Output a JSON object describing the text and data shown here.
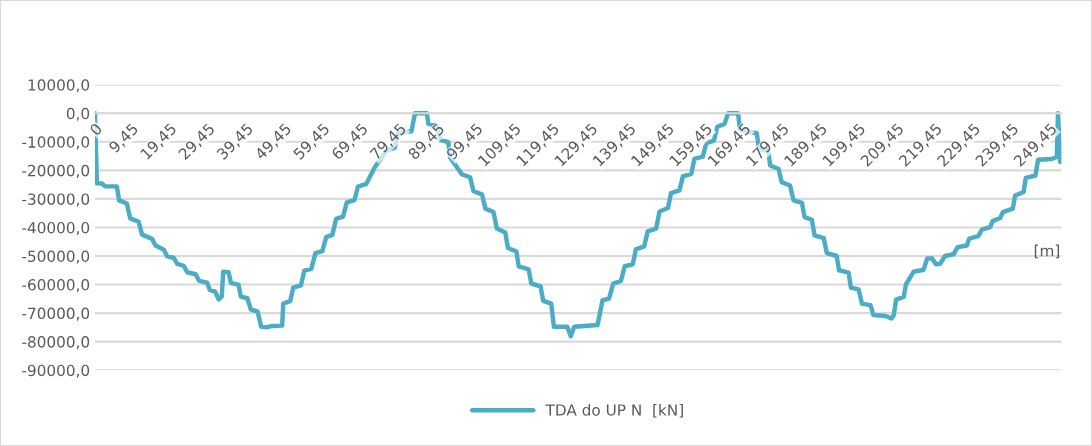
{
  "chart_data": {
    "type": "line",
    "xlabel": "[m]",
    "legend": "bottom",
    "grid": "y",
    "marker": "none",
    "line_style": "solid",
    "xlim": [
      0,
      252.5
    ],
    "xticks": [
      0,
      {
        "value": 9.45,
        "label": "9,45"
      },
      {
        "value": 19.45,
        "label": "19,45"
      },
      {
        "value": 29.45,
        "label": "29,45"
      },
      {
        "value": 39.45,
        "label": "39,45"
      },
      {
        "value": 49.45,
        "label": "49,45"
      },
      {
        "value": 59.45,
        "label": "59,45"
      },
      {
        "value": 69.45,
        "label": "69,45"
      },
      {
        "value": 79.45,
        "label": "79,45"
      },
      {
        "value": 89.45,
        "label": "89,45"
      },
      {
        "value": 99.45,
        "label": "99,45"
      },
      {
        "value": 109.45,
        "label": "109,45"
      },
      {
        "value": 119.45,
        "label": "119,45"
      },
      {
        "value": 129.45,
        "label": "129,45"
      },
      {
        "value": 139.45,
        "label": "139,45"
      },
      {
        "value": 149.45,
        "label": "149,45"
      },
      {
        "value": 159.45,
        "label": "159,45"
      },
      {
        "value": 169.45,
        "label": "169,45"
      },
      {
        "value": 179.45,
        "label": "179,45"
      },
      {
        "value": 189.45,
        "label": "189,45"
      },
      {
        "value": 199.45,
        "label": "199,45"
      },
      {
        "value": 209.45,
        "label": "209,45"
      },
      {
        "value": 219.45,
        "label": "219,45"
      },
      {
        "value": 229.45,
        "label": "229,45"
      },
      {
        "value": 239.45,
        "label": "239,45"
      },
      {
        "value": 249.45,
        "label": "249,45"
      }
    ],
    "ylim": [
      -90000,
      10000
    ],
    "yticks": [
      {
        "value": 10000,
        "label": "10000,0"
      },
      {
        "value": 0,
        "label": "0,0"
      },
      {
        "value": -10000,
        "label": "-10000,0"
      },
      {
        "value": -20000,
        "label": "-20000,0"
      },
      {
        "value": -30000,
        "label": "-30000,0"
      },
      {
        "value": -40000,
        "label": "-40000,0"
      },
      {
        "value": -50000,
        "label": "-50000,0"
      },
      {
        "value": -60000,
        "label": "-60000,0"
      },
      {
        "value": -70000,
        "label": "-70000,0"
      },
      {
        "value": -80000,
        "label": "-80000,0"
      },
      {
        "value": -90000,
        "label": "-90000,0"
      }
    ],
    "series": [
      {
        "name": "TDA do UP N  [kN]",
        "color": "#4bacc6",
        "x": [
          0,
          0.5,
          1.8,
          2.7,
          5.7,
          6.3,
          8.3,
          9.2,
          11.4,
          12.3,
          14.9,
          15.8,
          18.0,
          18.8,
          20.6,
          21.5,
          23.2,
          24.1,
          26.3,
          27.2,
          29.3,
          30.0,
          31.4,
          32.3,
          33.1,
          33.5,
          34.9,
          35.5,
          37.5,
          38.1,
          39.8,
          40.7,
          42.5,
          43.4,
          44.7,
          46.4,
          48.9,
          49.2,
          51.0,
          51.8,
          53.8,
          54.7,
          56.5,
          57.6,
          59.4,
          60.4,
          62.0,
          63.0,
          64.8,
          65.8,
          67.8,
          68.7,
          70.9,
          73.1,
          76.2,
          78.3,
          79.2,
          82.7,
          83.6,
          86.7,
          87.1,
          89.3,
          90.2,
          92.3,
          92.8,
          95.9,
          98.0,
          98.9,
          101.1,
          102.0,
          104.1,
          105.0,
          107.2,
          107.9,
          110.1,
          110.7,
          113.3,
          114.0,
          116.4,
          117.1,
          119.2,
          119.9,
          123.4,
          124.3,
          125.2,
          131.3,
          132.6,
          134.3,
          135.4,
          137.4,
          138.4,
          140.5,
          141.3,
          143.5,
          144.4,
          146.6,
          147.5,
          149.7,
          150.5,
          152.7,
          153.6,
          155.8,
          156.6,
          158.8,
          159.7,
          161.7,
          162.6,
          164.5,
          165.4,
          168.0,
          168.5,
          170.2,
          172.9,
          173.5,
          175.9,
          176.4,
          178.6,
          179.4,
          181.6,
          182.5,
          184.7,
          185.4,
          187.3,
          188.0,
          190.4,
          191.2,
          193.8,
          194.4,
          196.9,
          197.5,
          199.5,
          200.4,
          202.6,
          203.4,
          206.5,
          208.1,
          208.7,
          209.3,
          211.3,
          211.9,
          213.9,
          216.5,
          217.4,
          218.7,
          219.7,
          220.8,
          222.1,
          224.3,
          225.4,
          227.8,
          228.4,
          230.8,
          231.7,
          233.9,
          234.5,
          236.5,
          237.2,
          239.8,
          240.4,
          242.6,
          243.2,
          245.7,
          246.4,
          250.0,
          251.3,
          251.6,
          252.2
        ],
        "values": [
          0,
          -24500,
          -24600,
          -25600,
          -25600,
          -30500,
          -31600,
          -36800,
          -38000,
          -42500,
          -44000,
          -46300,
          -47800,
          -50000,
          -50700,
          -52800,
          -53500,
          -55700,
          -56400,
          -58700,
          -59300,
          -61900,
          -62500,
          -65200,
          -64200,
          -55500,
          -55700,
          -59400,
          -60100,
          -64200,
          -64800,
          -68700,
          -69500,
          -74700,
          -75000,
          -74500,
          -74400,
          -66700,
          -65800,
          -61100,
          -60300,
          -55100,
          -54500,
          -49000,
          -48300,
          -43400,
          -42600,
          -37000,
          -36200,
          -31200,
          -30400,
          -25700,
          -24700,
          -18900,
          -13000,
          -12100,
          -7000,
          -6300,
          0,
          0,
          -3700,
          -4300,
          -9300,
          -10100,
          -15600,
          -21400,
          -22400,
          -27300,
          -28400,
          -33400,
          -34600,
          -40400,
          -41800,
          -47200,
          -48400,
          -53600,
          -54700,
          -59700,
          -60600,
          -65700,
          -66700,
          -74800,
          -74800,
          -78100,
          -74800,
          -74200,
          -65500,
          -64900,
          -59700,
          -58700,
          -53600,
          -52900,
          -47700,
          -46600,
          -41400,
          -40400,
          -34400,
          -33200,
          -28000,
          -27000,
          -22100,
          -21200,
          -16000,
          -15200,
          -10500,
          -9600,
          -4700,
          -3700,
          0,
          0,
          -5500,
          -6400,
          -7000,
          -12500,
          -13100,
          -18300,
          -19500,
          -24100,
          -25300,
          -30500,
          -31400,
          -36400,
          -37300,
          -42800,
          -43700,
          -49000,
          -50000,
          -55000,
          -55800,
          -61100,
          -61700,
          -66700,
          -67200,
          -70700,
          -71000,
          -71900,
          -70700,
          -65300,
          -64300,
          -59900,
          -55500,
          -54800,
          -50900,
          -50900,
          -52900,
          -52700,
          -50000,
          -49400,
          -46900,
          -46300,
          -43900,
          -43000,
          -40800,
          -39900,
          -37800,
          -36700,
          -34600,
          -33400,
          -28800,
          -27600,
          -22600,
          -21800,
          -16300,
          -16000,
          -15200,
          0,
          -17100
        ]
      }
    ]
  }
}
